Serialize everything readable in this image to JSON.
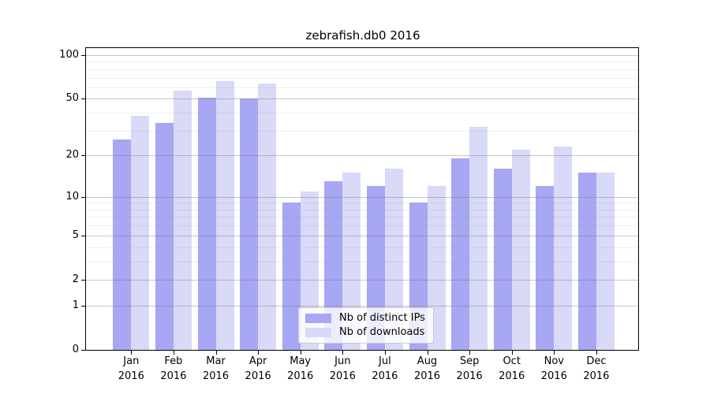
{
  "chart_data": {
    "type": "bar",
    "title": "zebrafish.db0 2016",
    "categories": [
      "Jan 2016",
      "Feb 2016",
      "Mar 2016",
      "Apr 2016",
      "May 2016",
      "Jun 2016",
      "Jul 2016",
      "Aug 2016",
      "Sep 2016",
      "Oct 2016",
      "Nov 2016",
      "Dec 2016"
    ],
    "series": [
      {
        "name": "Nb of distinct IPs",
        "color": "#a7a7f3",
        "values": [
          26,
          34,
          51,
          50,
          9,
          13,
          12,
          9,
          19,
          16,
          12,
          15
        ]
      },
      {
        "name": "Nb of downloads",
        "color": "#d9d9f8",
        "values": [
          38,
          57,
          66,
          64,
          11,
          15,
          16,
          12,
          32,
          22,
          23,
          15
        ]
      }
    ],
    "xlabel": "",
    "ylabel": "",
    "yscale": "log1p",
    "ylim": [
      0,
      110
    ],
    "yticks": [
      100,
      50,
      20,
      10,
      5,
      2,
      1,
      0
    ],
    "minor_yticks": [
      90,
      80,
      70,
      60,
      40,
      30,
      9,
      8,
      7,
      6,
      4,
      3
    ],
    "grid": "horizontal, major and minor",
    "legend_position": "lower center inside plot",
    "colors": {
      "background": "#ffffff",
      "axis": "#000000",
      "grid_major": "#8a8a8a",
      "grid_minor": "#e8e8e8"
    }
  }
}
